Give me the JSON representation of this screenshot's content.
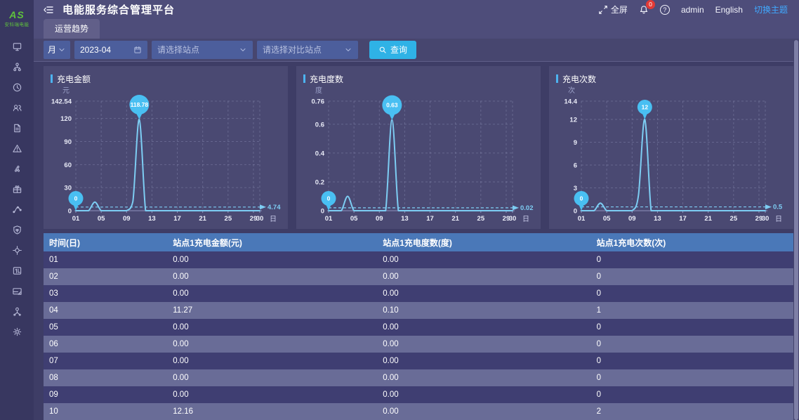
{
  "app": {
    "title": "电能服务综合管理平台",
    "logo_mark": "AS",
    "logo_text": "安科瑞电能"
  },
  "header": {
    "fullscreen_label": "全屏",
    "badge_count": "0",
    "help_glyph": "?",
    "username": "admin",
    "language": "English",
    "theme_label": "切换主题"
  },
  "tabs": [
    {
      "label": "运营趋势"
    }
  ],
  "filters": {
    "period_value": "月",
    "date_value": "2023-04",
    "station_placeholder": "请选择站点",
    "compare_placeholder": "请选择对比站点",
    "search_label": "查询"
  },
  "sidebar": {
    "items": [
      {
        "icon": "monitor"
      },
      {
        "icon": "organization"
      },
      {
        "icon": "clock"
      },
      {
        "icon": "users"
      },
      {
        "icon": "document"
      },
      {
        "icon": "alert"
      },
      {
        "icon": "fan"
      },
      {
        "icon": "gift"
      },
      {
        "icon": "pipeline"
      },
      {
        "icon": "shield"
      },
      {
        "icon": "crosshair"
      },
      {
        "icon": "meter"
      },
      {
        "icon": "storage"
      },
      {
        "icon": "share"
      },
      {
        "icon": "settings"
      }
    ]
  },
  "chart_data": [
    {
      "type": "line",
      "title": "充电金额",
      "y_unit": "元",
      "x_unit": "日",
      "y_max": 142.54,
      "y_ticks": [
        "0",
        "30",
        "60",
        "90",
        "120",
        "142.54"
      ],
      "x_ticks": [
        {
          "day": 1,
          "label": "01"
        },
        {
          "day": 5,
          "label": "05"
        },
        {
          "day": 9,
          "label": "09"
        },
        {
          "day": 13,
          "label": "13"
        },
        {
          "day": 17,
          "label": "17"
        },
        {
          "day": 21,
          "label": "21"
        },
        {
          "day": 25,
          "label": "25"
        },
        {
          "day": 29,
          "label": "29"
        },
        {
          "day": 30,
          "label": "30"
        }
      ],
      "values": [
        0,
        0,
        0,
        11.27,
        0,
        0,
        0,
        0,
        0,
        12.16,
        118.78,
        0,
        0,
        0,
        0,
        0,
        0,
        0,
        0,
        0,
        0,
        0,
        0,
        0,
        0,
        0,
        0,
        0,
        0,
        0
      ],
      "average": {
        "value": 4.74,
        "label": "4.74"
      },
      "markers": [
        {
          "day": 1,
          "value": 0,
          "label": "0"
        },
        {
          "day": 11,
          "value": 118.78,
          "label": "118.78"
        }
      ]
    },
    {
      "type": "line",
      "title": "充电度数",
      "y_unit": "度",
      "x_unit": "日",
      "y_max": 0.76,
      "y_ticks": [
        "0",
        "0.2",
        "0.4",
        "0.6",
        "0.76"
      ],
      "x_ticks": [
        {
          "day": 1,
          "label": "01"
        },
        {
          "day": 5,
          "label": "05"
        },
        {
          "day": 9,
          "label": "09"
        },
        {
          "day": 13,
          "label": "13"
        },
        {
          "day": 17,
          "label": "17"
        },
        {
          "day": 21,
          "label": "21"
        },
        {
          "day": 25,
          "label": "25"
        },
        {
          "day": 29,
          "label": "29"
        },
        {
          "day": 30,
          "label": "30"
        }
      ],
      "values": [
        0,
        0,
        0,
        0.1,
        0,
        0,
        0,
        0,
        0,
        0,
        0.63,
        0,
        0,
        0,
        0,
        0,
        0,
        0,
        0,
        0,
        0,
        0,
        0,
        0,
        0,
        0,
        0,
        0,
        0,
        0
      ],
      "average": {
        "value": 0.02,
        "label": "0.02"
      },
      "markers": [
        {
          "day": 1,
          "value": 0,
          "label": "0"
        },
        {
          "day": 11,
          "value": 0.63,
          "label": "0.63"
        }
      ]
    },
    {
      "type": "line",
      "title": "充电次数",
      "y_unit": "次",
      "x_unit": "日",
      "y_max": 14.4,
      "y_ticks": [
        "0",
        "3",
        "6",
        "9",
        "12",
        "14.4"
      ],
      "x_ticks": [
        {
          "day": 1,
          "label": "01"
        },
        {
          "day": 5,
          "label": "05"
        },
        {
          "day": 9,
          "label": "09"
        },
        {
          "day": 13,
          "label": "13"
        },
        {
          "day": 17,
          "label": "17"
        },
        {
          "day": 21,
          "label": "21"
        },
        {
          "day": 25,
          "label": "25"
        },
        {
          "day": 29,
          "label": "29"
        },
        {
          "day": 30,
          "label": "30"
        }
      ],
      "values": [
        0,
        0,
        0,
        1,
        0,
        0,
        0,
        0,
        0,
        2,
        12,
        0,
        0,
        0,
        0,
        0,
        0,
        0,
        0,
        0,
        0,
        0,
        0,
        0,
        0,
        0,
        0,
        0,
        0,
        0
      ],
      "average": {
        "value": 0.5,
        "label": "0.5"
      },
      "markers": [
        {
          "day": 1,
          "value": 0,
          "label": "0"
        },
        {
          "day": 11,
          "value": 12,
          "label": "12"
        }
      ]
    }
  ],
  "table": {
    "columns": [
      "时间(日)",
      "站点1充电金额(元)",
      "站点1充电度数(度)",
      "站点1充电次数(次)"
    ],
    "rows": [
      [
        "01",
        "0.00",
        "0.00",
        "0"
      ],
      [
        "02",
        "0.00",
        "0.00",
        "0"
      ],
      [
        "03",
        "0.00",
        "0.00",
        "0"
      ],
      [
        "04",
        "11.27",
        "0.10",
        "1"
      ],
      [
        "05",
        "0.00",
        "0.00",
        "0"
      ],
      [
        "06",
        "0.00",
        "0.00",
        "0"
      ],
      [
        "07",
        "0.00",
        "0.00",
        "0"
      ],
      [
        "08",
        "0.00",
        "0.00",
        "0"
      ],
      [
        "09",
        "0.00",
        "0.00",
        "0"
      ],
      [
        "10",
        "12.16",
        "0.00",
        "2"
      ]
    ]
  },
  "colors": {
    "accent_cyan": "#2fb2e6",
    "chart_line": "#7dcdf3",
    "marker_fill": "#49bff2",
    "grid_line": "rgba(200,205,240,0.22)",
    "axis_line": "#9093bd",
    "table_header_bg": "#4a78b8",
    "row_dark": "#3f3e72",
    "row_light": "#696c97",
    "badge_red": "#e23a36",
    "theme_link_blue": "#40a9ff",
    "logo_green": "#5fc23c"
  }
}
